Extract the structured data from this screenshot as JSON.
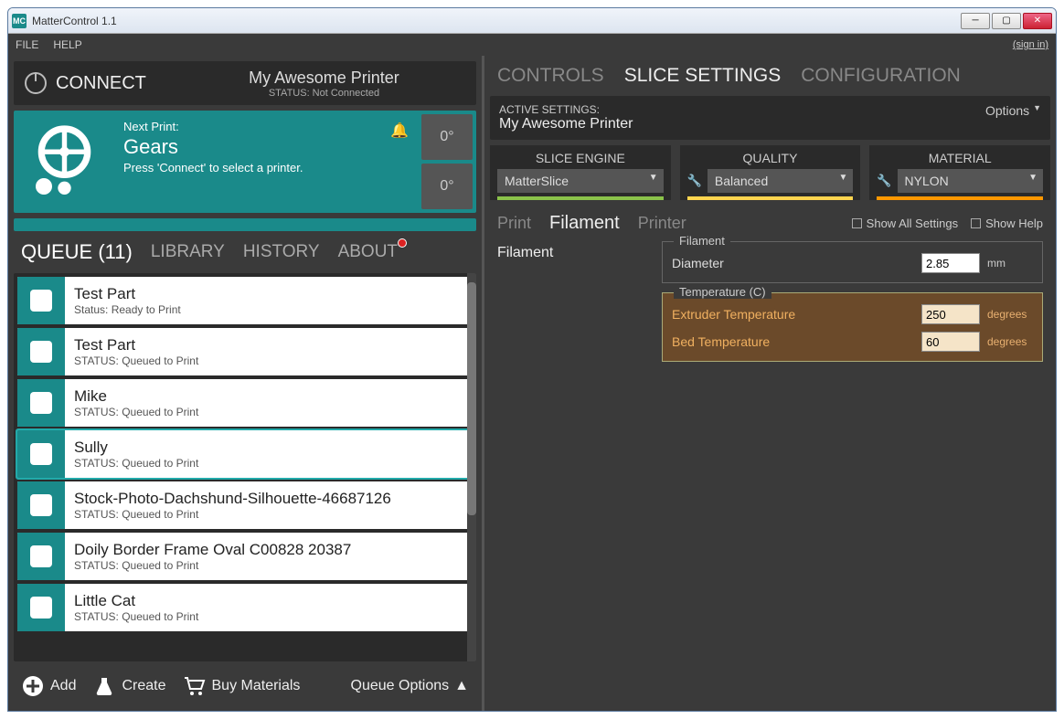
{
  "window": {
    "title": "MatterControl 1.1",
    "icon_text": "MC"
  },
  "menubar": {
    "file": "FILE",
    "help": "HELP",
    "sign_in": "(sign in)"
  },
  "connect": {
    "button": "CONNECT",
    "printer_name": "My Awesome Printer",
    "status_label": "STATUS: Not Connected"
  },
  "next_print": {
    "label": "Next Print:",
    "name": "Gears",
    "hint": "Press 'Connect' to select a printer.",
    "temp1": "0°",
    "temp2": "0°"
  },
  "main_tabs": {
    "queue": "QUEUE (11)",
    "library": "LIBRARY",
    "history": "HISTORY",
    "about": "ABOUT"
  },
  "queue": [
    {
      "name": "Test Part",
      "status": "Status: Ready to Print",
      "selected": false
    },
    {
      "name": "Test Part",
      "status": "STATUS: Queued to Print",
      "selected": false
    },
    {
      "name": "Mike",
      "status": "STATUS: Queued to Print",
      "selected": false
    },
    {
      "name": "Sully",
      "status": "STATUS: Queued to Print",
      "selected": true
    },
    {
      "name": "Stock-Photo-Dachshund-Silhouette-46687126",
      "status": "STATUS: Queued to Print",
      "selected": false
    },
    {
      "name": "Doily Border Frame Oval C00828 20387",
      "status": "STATUS: Queued to Print",
      "selected": false
    },
    {
      "name": "Little Cat",
      "status": "STATUS: Queued to Print",
      "selected": false
    }
  ],
  "bottom": {
    "add": "Add",
    "create": "Create",
    "buy": "Buy Materials",
    "queue_options": "Queue Options"
  },
  "right_tabs": {
    "controls": "CONTROLS",
    "slice": "SLICE SETTINGS",
    "config": "CONFIGURATION"
  },
  "active_settings": {
    "label": "ACTIVE SETTINGS:",
    "name": "My Awesome Printer",
    "options": "Options"
  },
  "engines": {
    "slice": {
      "label": "SLICE ENGINE",
      "value": "MatterSlice",
      "color": "#8bc34a"
    },
    "quality": {
      "label": "QUALITY",
      "value": "Balanced",
      "color": "#ffd54f",
      "wrench": true
    },
    "material": {
      "label": "MATERIAL",
      "value": "NYLON",
      "color": "#ff9800",
      "wrench": true
    }
  },
  "sub_tabs": {
    "print": "Print",
    "filament": "Filament",
    "printer": "Printer",
    "show_all": "Show All Settings",
    "show_help": "Show Help"
  },
  "settings": {
    "section": "Filament",
    "filament": {
      "legend": "Filament",
      "diameter_label": "Diameter",
      "diameter_value": "2.85",
      "diameter_unit": "mm"
    },
    "temp": {
      "legend": "Temperature (C)",
      "extruder_label": "Extruder Temperature",
      "extruder_value": "250",
      "bed_label": "Bed Temperature",
      "bed_value": "60",
      "unit": "degrees"
    }
  },
  "colors": {
    "teal": "#1a8a8a",
    "dark": "#3a3a3a",
    "darker": "#2a2a2a",
    "highlight": "#6b4a2a"
  }
}
